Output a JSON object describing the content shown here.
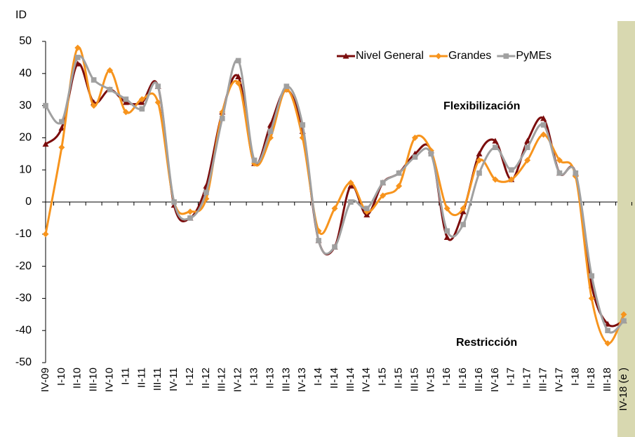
{
  "chart_data": {
    "type": "line",
    "ylabel": "ID",
    "categories": [
      "IV-09",
      "I-10",
      "II-10",
      "III-10",
      "IV-10",
      "I-11",
      "II-11",
      "III-11",
      "IV-11",
      "I-12",
      "II-12",
      "III-12",
      "IV-12",
      "I-13",
      "II-13",
      "III-13",
      "IV-13",
      "I-14",
      "II-14",
      "III-14",
      "IV-14",
      "I-15",
      "II-15",
      "III-15",
      "IV-15",
      "I-16",
      "II-16",
      "III-16",
      "IV-16",
      "I-17",
      "II-17",
      "III-17",
      "IV-17",
      "I-18",
      "II-18",
      "III-18",
      "IV-18 (e )"
    ],
    "series": [
      {
        "name": "Nivel General",
        "color": "#7b0c0c",
        "marker": "triangle",
        "values": [
          18,
          23,
          43,
          31,
          35,
          31,
          31,
          36,
          -1,
          -5,
          5,
          28,
          39,
          12,
          24,
          35,
          22,
          -12,
          -14,
          5,
          -4,
          6,
          9,
          15,
          16,
          -11,
          -3,
          15,
          19,
          7,
          19,
          26,
          9,
          9,
          -26,
          -38,
          -37
        ]
      },
      {
        "name": "Grandes",
        "color": "#f7941d",
        "marker": "diamond",
        "values": [
          -10,
          17,
          48,
          30,
          41,
          28,
          32,
          31,
          0,
          -3,
          1,
          28,
          37,
          12,
          20,
          35,
          20,
          -9,
          -2,
          6,
          -3,
          2,
          5,
          20,
          16,
          -2,
          -2,
          13,
          7,
          7,
          13,
          21,
          13,
          8,
          -30,
          -44,
          -35
        ]
      },
      {
        "name": "PyMEs",
        "color": "#a0a0a0",
        "marker": "square",
        "values": [
          30,
          25,
          45,
          38,
          35,
          32,
          29,
          36,
          0,
          -5,
          3,
          26,
          44,
          13,
          22,
          36,
          24,
          -12,
          -14,
          0,
          -2,
          6,
          9,
          14,
          15,
          -9,
          -7,
          9,
          17,
          10,
          17,
          24,
          9,
          9,
          -23,
          -40,
          -37
        ]
      }
    ],
    "ylim": [
      -50,
      50
    ],
    "yticks": [
      -50,
      -40,
      -30,
      -20,
      -10,
      0,
      10,
      20,
      30,
      40,
      50
    ],
    "legend": "upper right",
    "annotations": [
      "Flexibilización",
      "Restricción"
    ]
  }
}
